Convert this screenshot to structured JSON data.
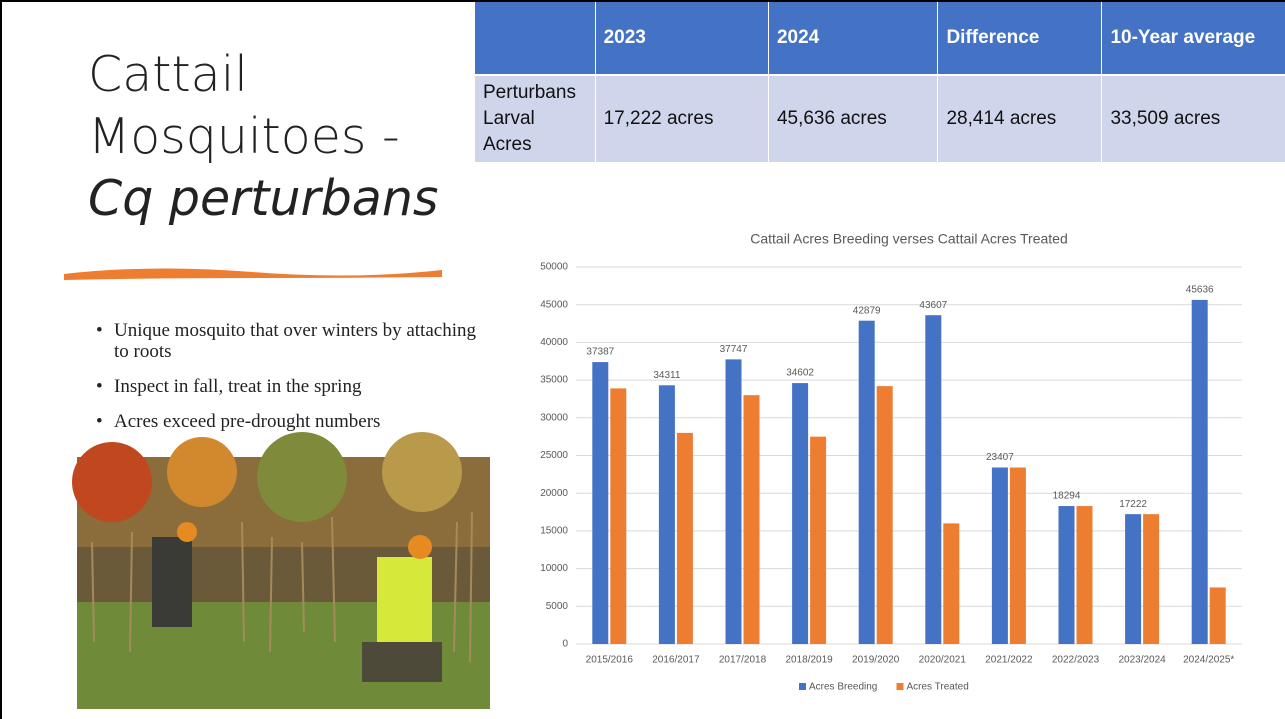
{
  "title": {
    "main": "Cattail Mosquitoes -",
    "italic": "Cq perturbans"
  },
  "bullets": [
    "Unique mosquito that over winters by attaching to roots",
    "Inspect in fall, treat in the spring",
    "Acres exceed pre-drought numbers"
  ],
  "table": {
    "header": [
      "2023",
      "2024",
      "Difference",
      "10-Year average"
    ],
    "rows": [
      [
        "Perturbans Larval Acres",
        "17,222 acres",
        "45,636 acres",
        "28,414 acres",
        "33,509 acres"
      ]
    ]
  },
  "chart_data": {
    "type": "bar",
    "title": "Cattail Acres Breeding verses Cattail Acres Treated",
    "categories": [
      "2015/2016",
      "2016/2017",
      "2017/2018",
      "2018/2019",
      "2019/2020",
      "2020/2021",
      "2021/2022",
      "2022/2023",
      "2023/2024",
      "2024/2025*"
    ],
    "series": [
      {
        "name": "Acres Breeding",
        "color": "#4472c4",
        "values": [
          37387,
          34311,
          37747,
          34602,
          42879,
          43607,
          23407,
          18294,
          17222,
          45636
        ]
      },
      {
        "name": "Acres Treated",
        "color": "#ed7d31",
        "values": [
          33900,
          28000,
          33000,
          27500,
          34200,
          16000,
          23407,
          18294,
          17222,
          7500
        ]
      }
    ],
    "ylim": [
      0,
      50000
    ],
    "yticks": [
      0,
      5000,
      10000,
      15000,
      20000,
      25000,
      30000,
      35000,
      40000,
      45000,
      50000
    ],
    "grid": true,
    "legend": "bottom"
  }
}
